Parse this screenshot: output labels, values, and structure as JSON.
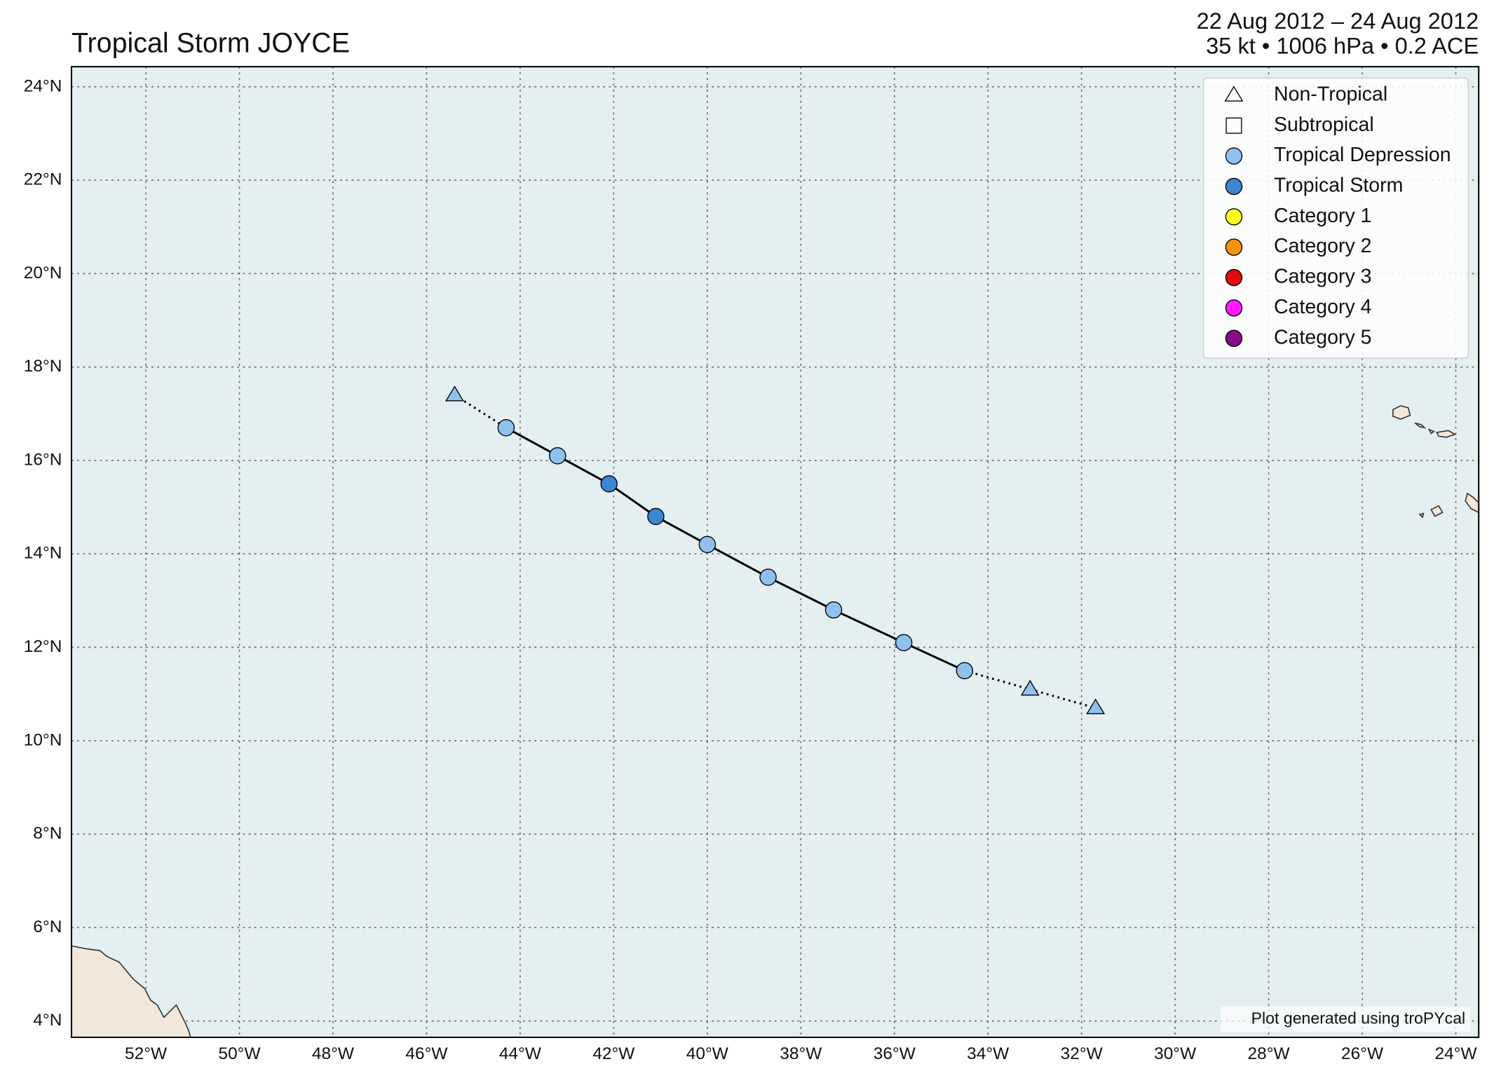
{
  "chart_data": {
    "type": "track",
    "title": "Tropical Storm JOYCE",
    "date_range": "22 Aug 2012 – 24 Aug 2012",
    "summary": "35 kt • 1006 hPa • 0.2 ACE",
    "credit": "Plot generated using troPYcal",
    "x": [
      -45.4,
      -44.3,
      -43.2,
      -42.1,
      -41.1,
      -40.0,
      -38.7,
      -37.3,
      -35.8,
      -34.5,
      -33.1,
      -31.7
    ],
    "y": [
      17.4,
      16.7,
      16.1,
      15.5,
      14.8,
      14.2,
      13.5,
      12.8,
      12.1,
      11.5,
      11.1,
      10.7
    ],
    "status": [
      "Non-Tropical",
      "Tropical Depression",
      "Tropical Depression",
      "Tropical Storm",
      "Tropical Storm",
      "Tropical Depression",
      "Tropical Depression",
      "Tropical Depression",
      "Tropical Depression",
      "Tropical Depression",
      "Non-Tropical",
      "Non-Tropical"
    ],
    "point_colors": [
      "#8fc1ef",
      "#8fc1ef",
      "#8fc1ef",
      "#3a86d2",
      "#3a86d2",
      "#8fc1ef",
      "#8fc1ef",
      "#8fc1ef",
      "#8fc1ef",
      "#8fc1ef",
      "#8fc1ef",
      "#8fc1ef"
    ],
    "legend": [
      {
        "name": "Non-Tropical",
        "marker": "triangle",
        "color": "none"
      },
      {
        "name": "Subtropical",
        "marker": "square",
        "color": "none"
      },
      {
        "name": "Tropical Depression",
        "marker": "circle",
        "color": "#8fc1ef"
      },
      {
        "name": "Tropical Storm",
        "marker": "circle",
        "color": "#3a86d2"
      },
      {
        "name": "Category 1",
        "marker": "circle",
        "color": "#ffff1a"
      },
      {
        "name": "Category 2",
        "marker": "circle",
        "color": "#f7940f"
      },
      {
        "name": "Category 3",
        "marker": "circle",
        "color": "#e00b0b"
      },
      {
        "name": "Category 4",
        "marker": "circle",
        "color": "#ff1aff"
      },
      {
        "name": "Category 5",
        "marker": "circle",
        "color": "#8a0a8a"
      }
    ],
    "legend_position": "upper right",
    "grid": true,
    "xlim": [
      -53.59,
      -23.51
    ],
    "ylim": [
      3.65,
      24.43
    ],
    "xticks": [
      {
        "value": -52,
        "label": "52°W"
      },
      {
        "value": -50,
        "label": "50°W"
      },
      {
        "value": -48,
        "label": "48°W"
      },
      {
        "value": -46,
        "label": "46°W"
      },
      {
        "value": -44,
        "label": "44°W"
      },
      {
        "value": -42,
        "label": "42°W"
      },
      {
        "value": -40,
        "label": "40°W"
      },
      {
        "value": -38,
        "label": "38°W"
      },
      {
        "value": -36,
        "label": "36°W"
      },
      {
        "value": -34,
        "label": "34°W"
      },
      {
        "value": -32,
        "label": "32°W"
      },
      {
        "value": -30,
        "label": "30°W"
      },
      {
        "value": -28,
        "label": "28°W"
      },
      {
        "value": -26,
        "label": "26°W"
      },
      {
        "value": -24,
        "label": "24°W"
      }
    ],
    "yticks": [
      {
        "value": 4,
        "label": "4°N"
      },
      {
        "value": 6,
        "label": "6°N"
      },
      {
        "value": 8,
        "label": "8°N"
      },
      {
        "value": 10,
        "label": "10°N"
      },
      {
        "value": 12,
        "label": "12°N"
      },
      {
        "value": 14,
        "label": "14°N"
      },
      {
        "value": 16,
        "label": "16°N"
      },
      {
        "value": 18,
        "label": "18°N"
      },
      {
        "value": 20,
        "label": "20°N"
      },
      {
        "value": 22,
        "label": "22°N"
      },
      {
        "value": 24,
        "label": "24°N"
      }
    ]
  }
}
